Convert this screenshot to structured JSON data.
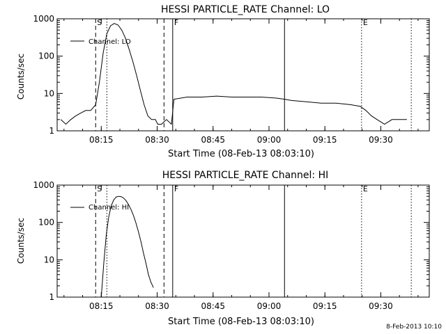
{
  "chart_data": [
    {
      "type": "line",
      "title": "HESSI PARTICLE_RATE Channel: LO",
      "xlabel": "Start Time (08-Feb-13 08:03:10)",
      "ylabel": "Counts/sec",
      "yscale": "log",
      "ylim": [
        1,
        1000
      ],
      "xlim": [
        "08:03:10",
        "09:43:00"
      ],
      "xticks": [
        "08:15",
        "08:30",
        "08:45",
        "09:00",
        "09:15",
        "09:30"
      ],
      "yticks": [
        "1",
        "10",
        "100",
        "1000"
      ],
      "grid": false,
      "legend": {
        "placement": "top-left",
        "entries": [
          "Channel: LO"
        ]
      },
      "markers": [
        {
          "label": "S",
          "time": "08:13:30",
          "style": "dashed"
        },
        {
          "label": "",
          "time": "08:31:50",
          "style": "dashed"
        },
        {
          "label": "",
          "time": "08:16:30",
          "style": "dotted"
        },
        {
          "label": "F",
          "time": "08:34:10",
          "style": "solid"
        },
        {
          "label": "",
          "time": "09:04:10",
          "style": "solid"
        },
        {
          "label": "E",
          "time": "09:24:50",
          "style": "dotted"
        },
        {
          "label": "",
          "time": "09:38:10",
          "style": "dotted"
        }
      ],
      "series": [
        {
          "name": "Channel: LO",
          "x": [
            "08:04:10",
            "08:05:30",
            "08:06:50",
            "08:08:10",
            "08:09:30",
            "08:10:50",
            "08:12:10",
            "08:13:30",
            "08:14:30",
            "08:15:30",
            "08:16:30",
            "08:17:30",
            "08:18:30",
            "08:19:30",
            "08:20:30",
            "08:21:30",
            "08:22:30",
            "08:23:30",
            "08:24:30",
            "08:25:30",
            "08:26:30",
            "08:27:30",
            "08:28:30",
            "08:29:30",
            "08:30:10",
            "08:31:10",
            "08:32:30",
            "08:33:50",
            "08:34:30",
            "08:38:00",
            "08:42:00",
            "08:46:00",
            "08:50:00",
            "08:54:00",
            "08:58:00",
            "09:02:00",
            "09:04:10",
            "09:06:00",
            "09:10:00",
            "09:14:00",
            "09:18:00",
            "09:22:00",
            "09:24:30",
            "09:26:00",
            "09:27:30",
            "09:29:00",
            "09:31:00",
            "09:33:00",
            "09:35:00",
            "09:37:00"
          ],
          "values": [
            2,
            1.5,
            2,
            2.5,
            3,
            3.5,
            3.5,
            5,
            20,
            120,
            400,
            650,
            750,
            680,
            500,
            300,
            150,
            70,
            30,
            12,
            5,
            2.5,
            2,
            2,
            1.5,
            1.5,
            2,
            1.5,
            7,
            8,
            8,
            8.5,
            8,
            8,
            8,
            7.5,
            7,
            6.5,
            6,
            5.5,
            5.5,
            5,
            4.5,
            3.5,
            2.5,
            2,
            1.5,
            2,
            2,
            2
          ]
        }
      ]
    },
    {
      "type": "line",
      "title": "HESSI PARTICLE_RATE Channel: HI",
      "xlabel": "Start Time (08-Feb-13 08:03:10)",
      "ylabel": "Counts/sec",
      "yscale": "log",
      "ylim": [
        1,
        1000
      ],
      "xlim": [
        "08:03:10",
        "09:43:00"
      ],
      "xticks": [
        "08:15",
        "08:30",
        "08:45",
        "09:00",
        "09:15",
        "09:30"
      ],
      "yticks": [
        "1",
        "10",
        "100",
        "1000"
      ],
      "grid": false,
      "legend": {
        "placement": "top-left",
        "entries": [
          "Channel: HI"
        ]
      },
      "markers": [
        {
          "label": "S",
          "time": "08:13:30",
          "style": "dashed"
        },
        {
          "label": "",
          "time": "08:31:50",
          "style": "dashed"
        },
        {
          "label": "",
          "time": "08:16:30",
          "style": "dotted"
        },
        {
          "label": "F",
          "time": "08:34:10",
          "style": "solid"
        },
        {
          "label": "",
          "time": "09:04:10",
          "style": "solid"
        },
        {
          "label": "E",
          "time": "09:24:50",
          "style": "dotted"
        },
        {
          "label": "",
          "time": "09:38:10",
          "style": "dotted"
        }
      ],
      "series": [
        {
          "name": "Channel: HI",
          "x": [
            "08:15:00",
            "08:15:40",
            "08:16:20",
            "08:17:00",
            "08:17:40",
            "08:18:20",
            "08:19:00",
            "08:19:40",
            "08:20:20",
            "08:21:00",
            "08:21:40",
            "08:22:20",
            "08:23:00",
            "08:23:40",
            "08:24:20",
            "08:25:00",
            "08:25:40",
            "08:26:20",
            "08:27:00",
            "08:27:40",
            "08:28:20",
            "08:29:00"
          ],
          "values": [
            1,
            8,
            45,
            140,
            280,
            400,
            480,
            500,
            490,
            450,
            380,
            300,
            220,
            150,
            95,
            55,
            30,
            15,
            8,
            4,
            2.5,
            1.8
          ]
        }
      ]
    }
  ],
  "footer": {
    "timestamp": "8-Feb-2013 10:10"
  },
  "style": {
    "line_color": "#000000",
    "background": "#ffffff"
  }
}
